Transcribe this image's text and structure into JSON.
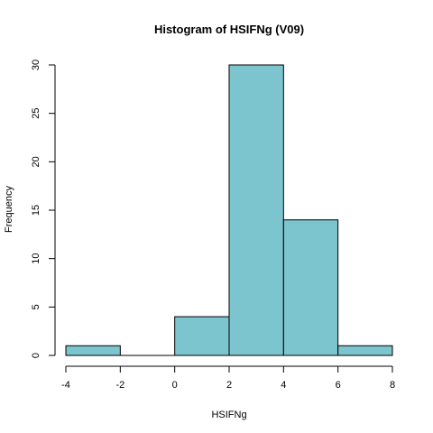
{
  "chart_data": {
    "type": "bar",
    "title": "Histogram of HSIFNg (V09)",
    "xlabel": "HSIFNg",
    "ylabel": "Frequency",
    "bin_edges": [
      -4,
      -2,
      0,
      2,
      4,
      6,
      8
    ],
    "values": [
      1,
      0,
      4,
      30,
      14,
      1
    ],
    "xlim": [
      -4,
      8
    ],
    "ylim": [
      0,
      30
    ],
    "x_ticks": [
      -4,
      -2,
      0,
      2,
      4,
      6,
      8
    ],
    "x_tick_labels": [
      "-4",
      "-2",
      "0",
      "2",
      "4",
      "6",
      "8"
    ],
    "y_ticks": [
      0,
      5,
      10,
      15,
      20,
      25,
      30
    ],
    "y_tick_labels": [
      "0",
      "5",
      "10",
      "15",
      "20",
      "25",
      "30"
    ],
    "bar_color": "#7cc4ce",
    "grid": false
  }
}
